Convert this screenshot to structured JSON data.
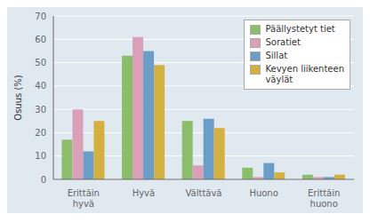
{
  "chart_data": {
    "type": "bar",
    "categories": [
      "Erittäin\nhyvä",
      "Hyvä",
      "Välttävä",
      "Huono",
      "Erittäin\nhuono"
    ],
    "series": [
      {
        "name": "Päällystetyt tiet",
        "color": "#8BBD6A",
        "values": [
          17,
          53,
          25,
          5,
          2
        ]
      },
      {
        "name": "Soratiet",
        "color": "#D9A0B8",
        "values": [
          30,
          61,
          6,
          1,
          1
        ]
      },
      {
        "name": "Sillat",
        "color": "#6A9EC8",
        "values": [
          12,
          55,
          26,
          7,
          1
        ]
      },
      {
        "name": "Kevyen liikenteen\nväylät",
        "color": "#D4B040",
        "values": [
          25,
          49,
          22,
          3,
          2
        ]
      }
    ],
    "ylabel": "Osuus (%)",
    "ylim": [
      0,
      70
    ],
    "yticks": [
      0,
      10,
      20,
      30,
      40,
      50,
      60,
      70
    ],
    "grid": true,
    "legend": "upper right"
  }
}
